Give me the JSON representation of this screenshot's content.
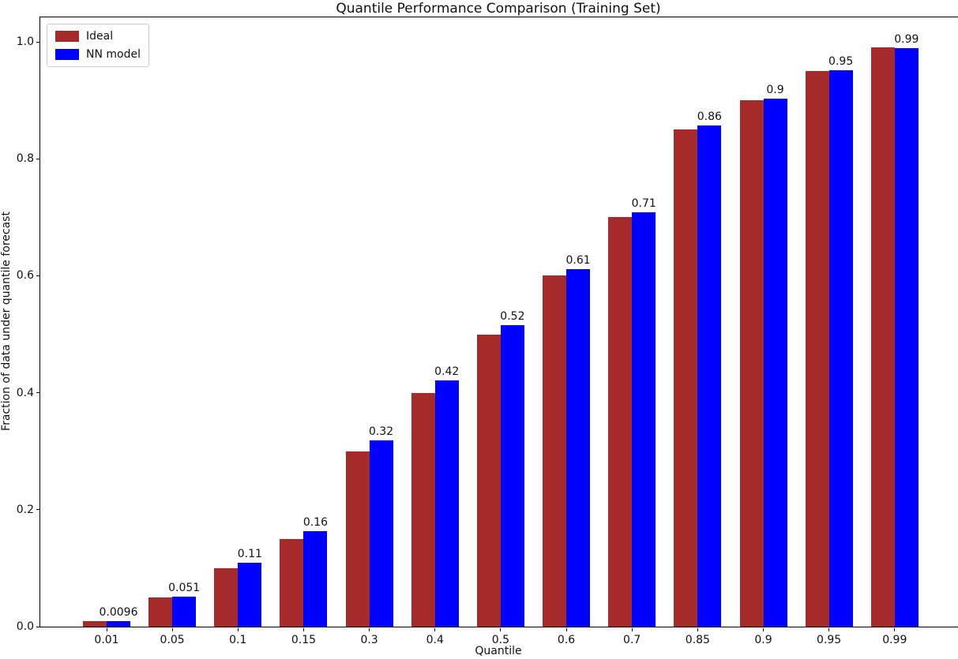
{
  "chart_data": {
    "type": "bar",
    "title": "Quantile Performance Comparison (Training Set)",
    "xlabel": "Quantile",
    "ylabel": "Fraction of data under quantile forecast",
    "categories": [
      "0.01",
      "0.05",
      "0.1",
      "0.15",
      "0.3",
      "0.4",
      "0.5",
      "0.6",
      "0.7",
      "0.85",
      "0.9",
      "0.95",
      "0.99"
    ],
    "series": [
      {
        "name": "Ideal",
        "color": "#A52A2A",
        "values": [
          0.01,
          0.05,
          0.1,
          0.15,
          0.3,
          0.4,
          0.5,
          0.6,
          0.7,
          0.85,
          0.9,
          0.95,
          0.99
        ]
      },
      {
        "name": "NN model",
        "color": "#0000FF",
        "values": [
          0.0096,
          0.051,
          0.11,
          0.16,
          0.32,
          0.42,
          0.52,
          0.61,
          0.71,
          0.86,
          0.9,
          0.95,
          0.99
        ],
        "value_labels": [
          "0.0096",
          "0.051",
          "0.11",
          "0.16",
          "0.32",
          "0.42",
          "0.52",
          "0.61",
          "0.71",
          "0.86",
          "0.9",
          "0.95",
          "0.99"
        ],
        "drawn_heights": [
          0.0096,
          0.051,
          0.109,
          0.163,
          0.318,
          0.421,
          0.516,
          0.611,
          0.709,
          0.857,
          0.903,
          0.951,
          0.989
        ]
      }
    ],
    "yticks": [
      "0.0",
      "0.2",
      "0.4",
      "0.6",
      "0.8",
      "1.0"
    ],
    "ylim": [
      0,
      1.042
    ],
    "grid": false,
    "legend_position": "upper-left",
    "bar_label_series": "NN model"
  }
}
